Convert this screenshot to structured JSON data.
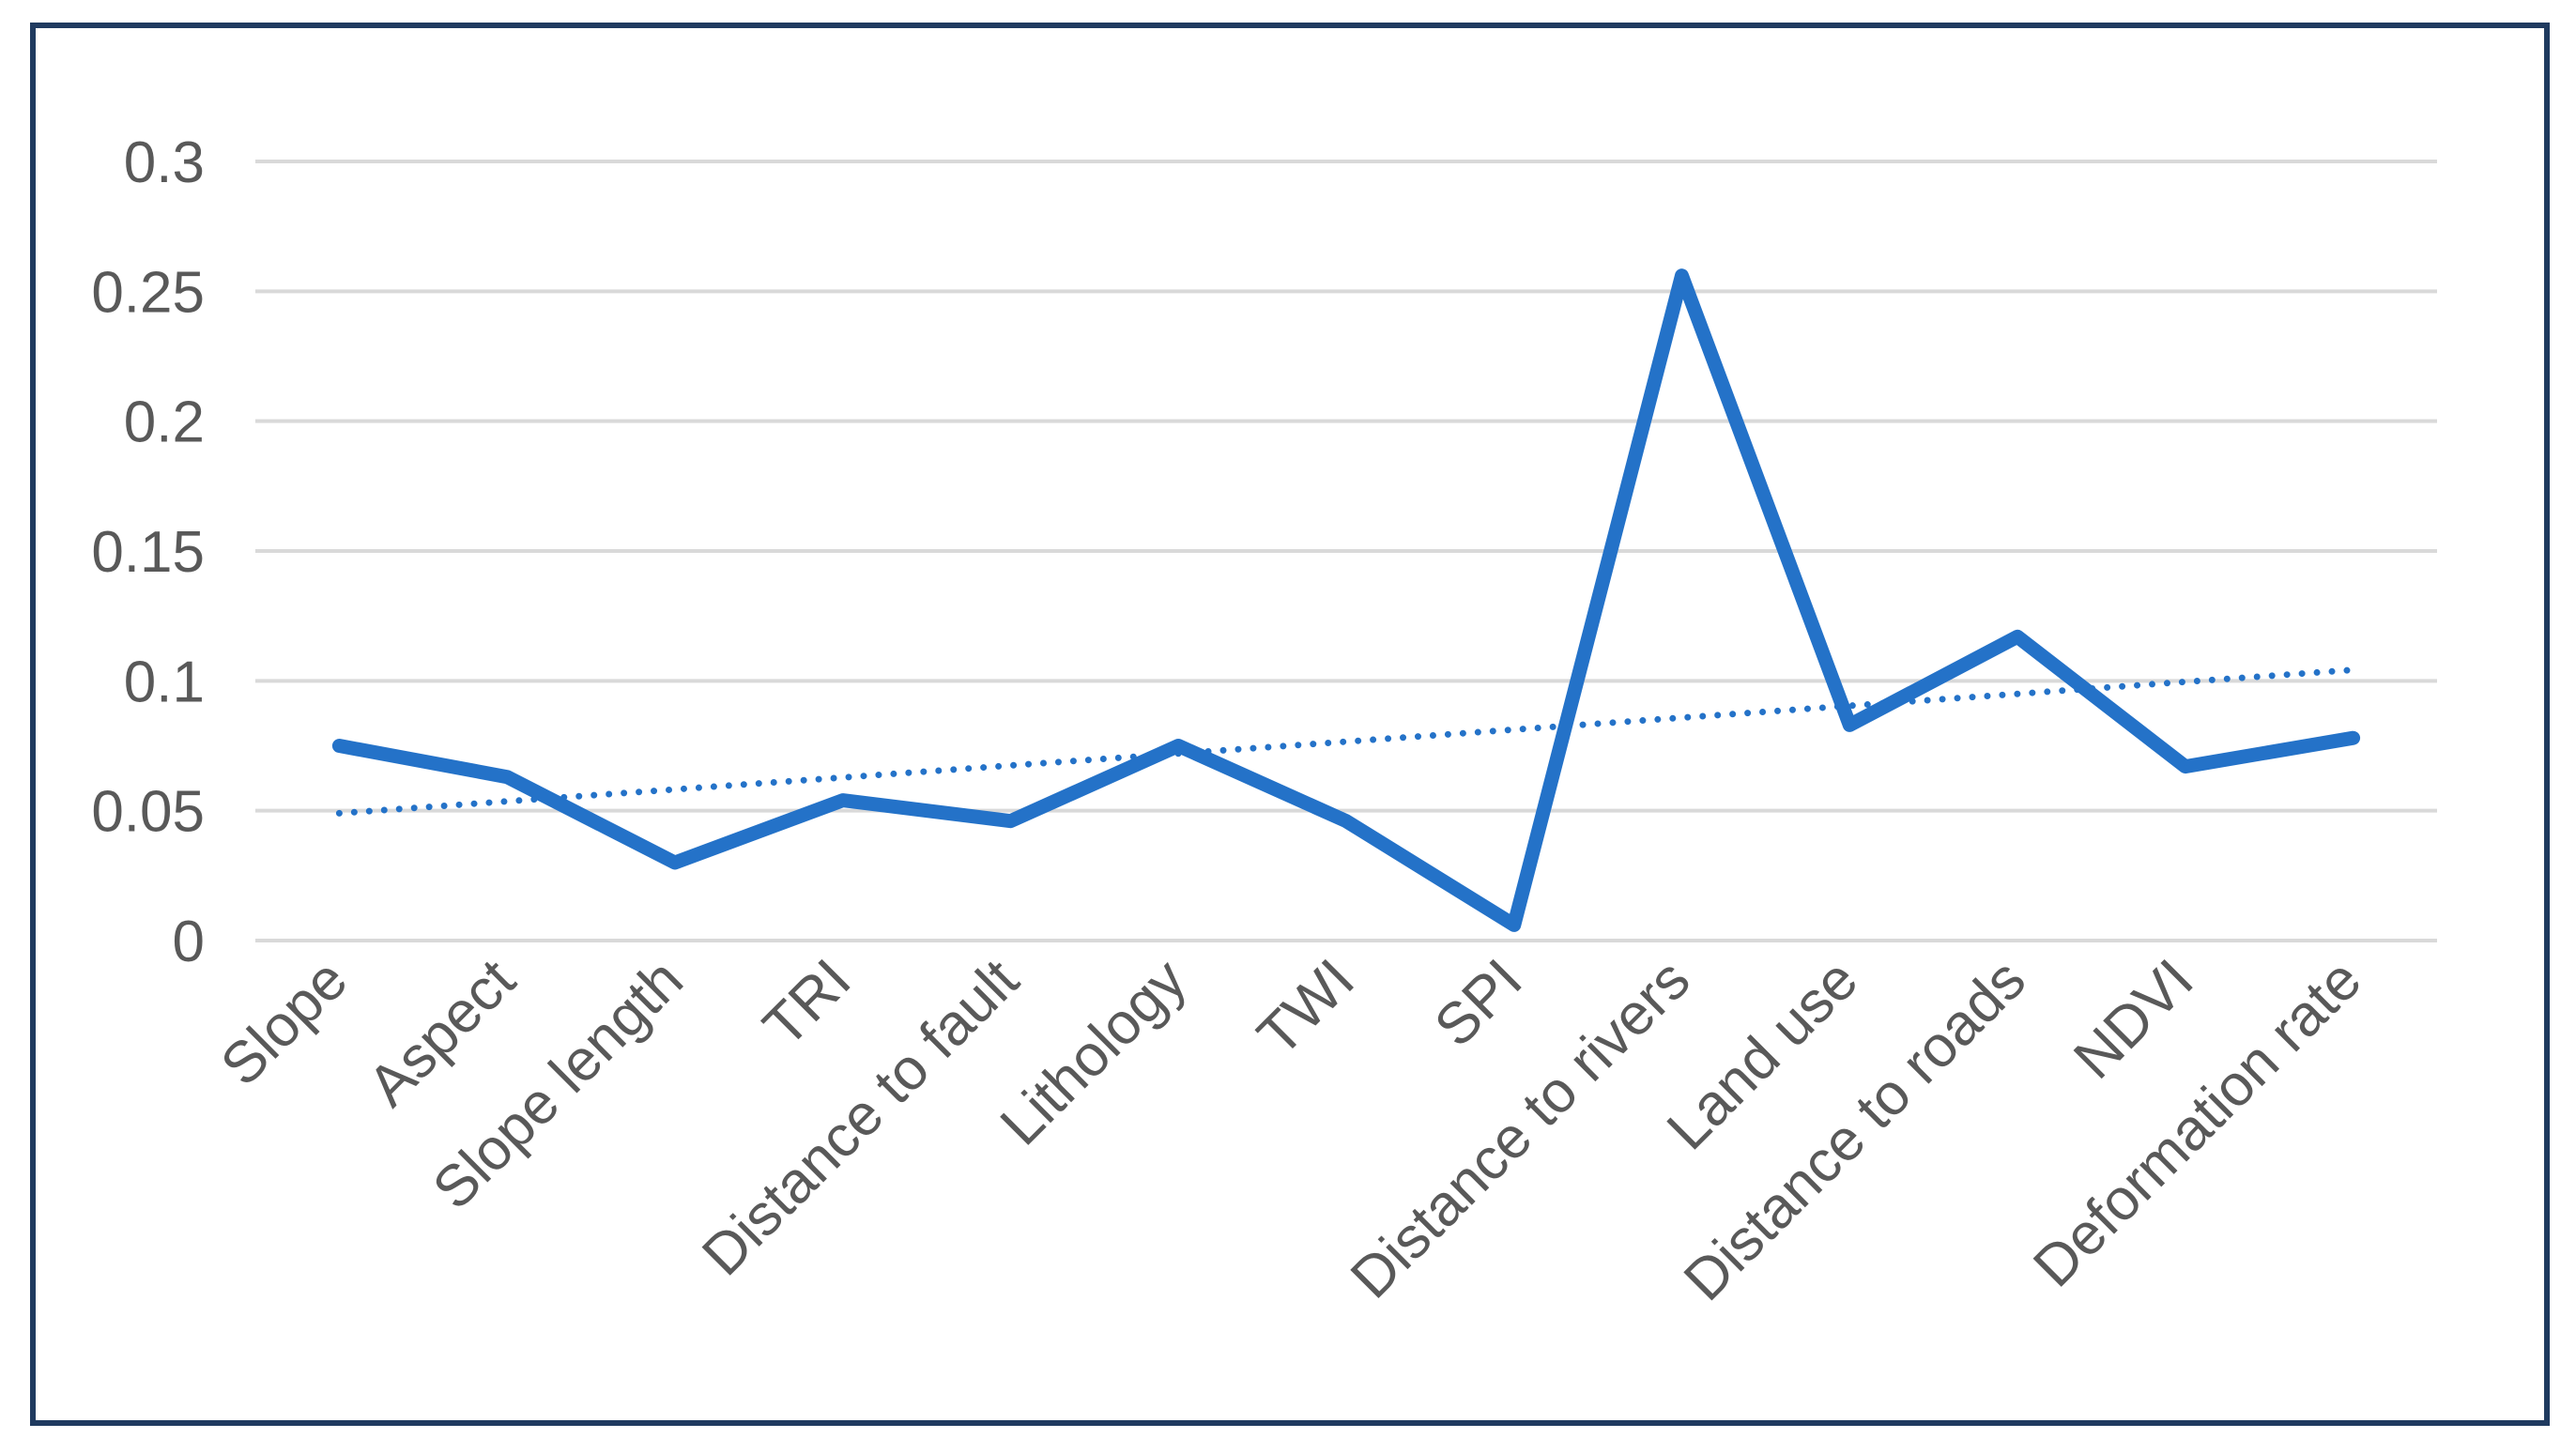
{
  "chart_data": {
    "type": "line",
    "categories": [
      "Slope",
      "Aspect",
      "Slope length",
      "TRI",
      "Distance to fault",
      "Lithology",
      "TWI",
      "SPI",
      "Distance to rivers",
      "Land use",
      "Distance to roads",
      "NDVI",
      "Deformation rate"
    ],
    "series": [
      {
        "values": [
          0.075,
          0.063,
          0.03,
          0.054,
          0.046,
          0.075,
          0.046,
          0.006,
          0.256,
          0.083,
          0.117,
          0.067,
          0.078
        ],
        "color": "#2472c8",
        "style": "solid"
      },
      {
        "values": [
          0.049,
          0.0536,
          0.0582,
          0.0628,
          0.0674,
          0.072,
          0.0766,
          0.0812,
          0.0858,
          0.0904,
          0.095,
          0.0996,
          0.1042
        ],
        "color": "#2472c8",
        "style": "dotted trendline"
      }
    ],
    "y_ticks": [
      "0",
      "0.05",
      "0.1",
      "0.15",
      "0.2",
      "0.25",
      "0.3"
    ],
    "ylim": [
      0,
      0.3
    ],
    "grid": true,
    "legend": "none",
    "title": "",
    "xlabel": "",
    "ylabel": ""
  }
}
